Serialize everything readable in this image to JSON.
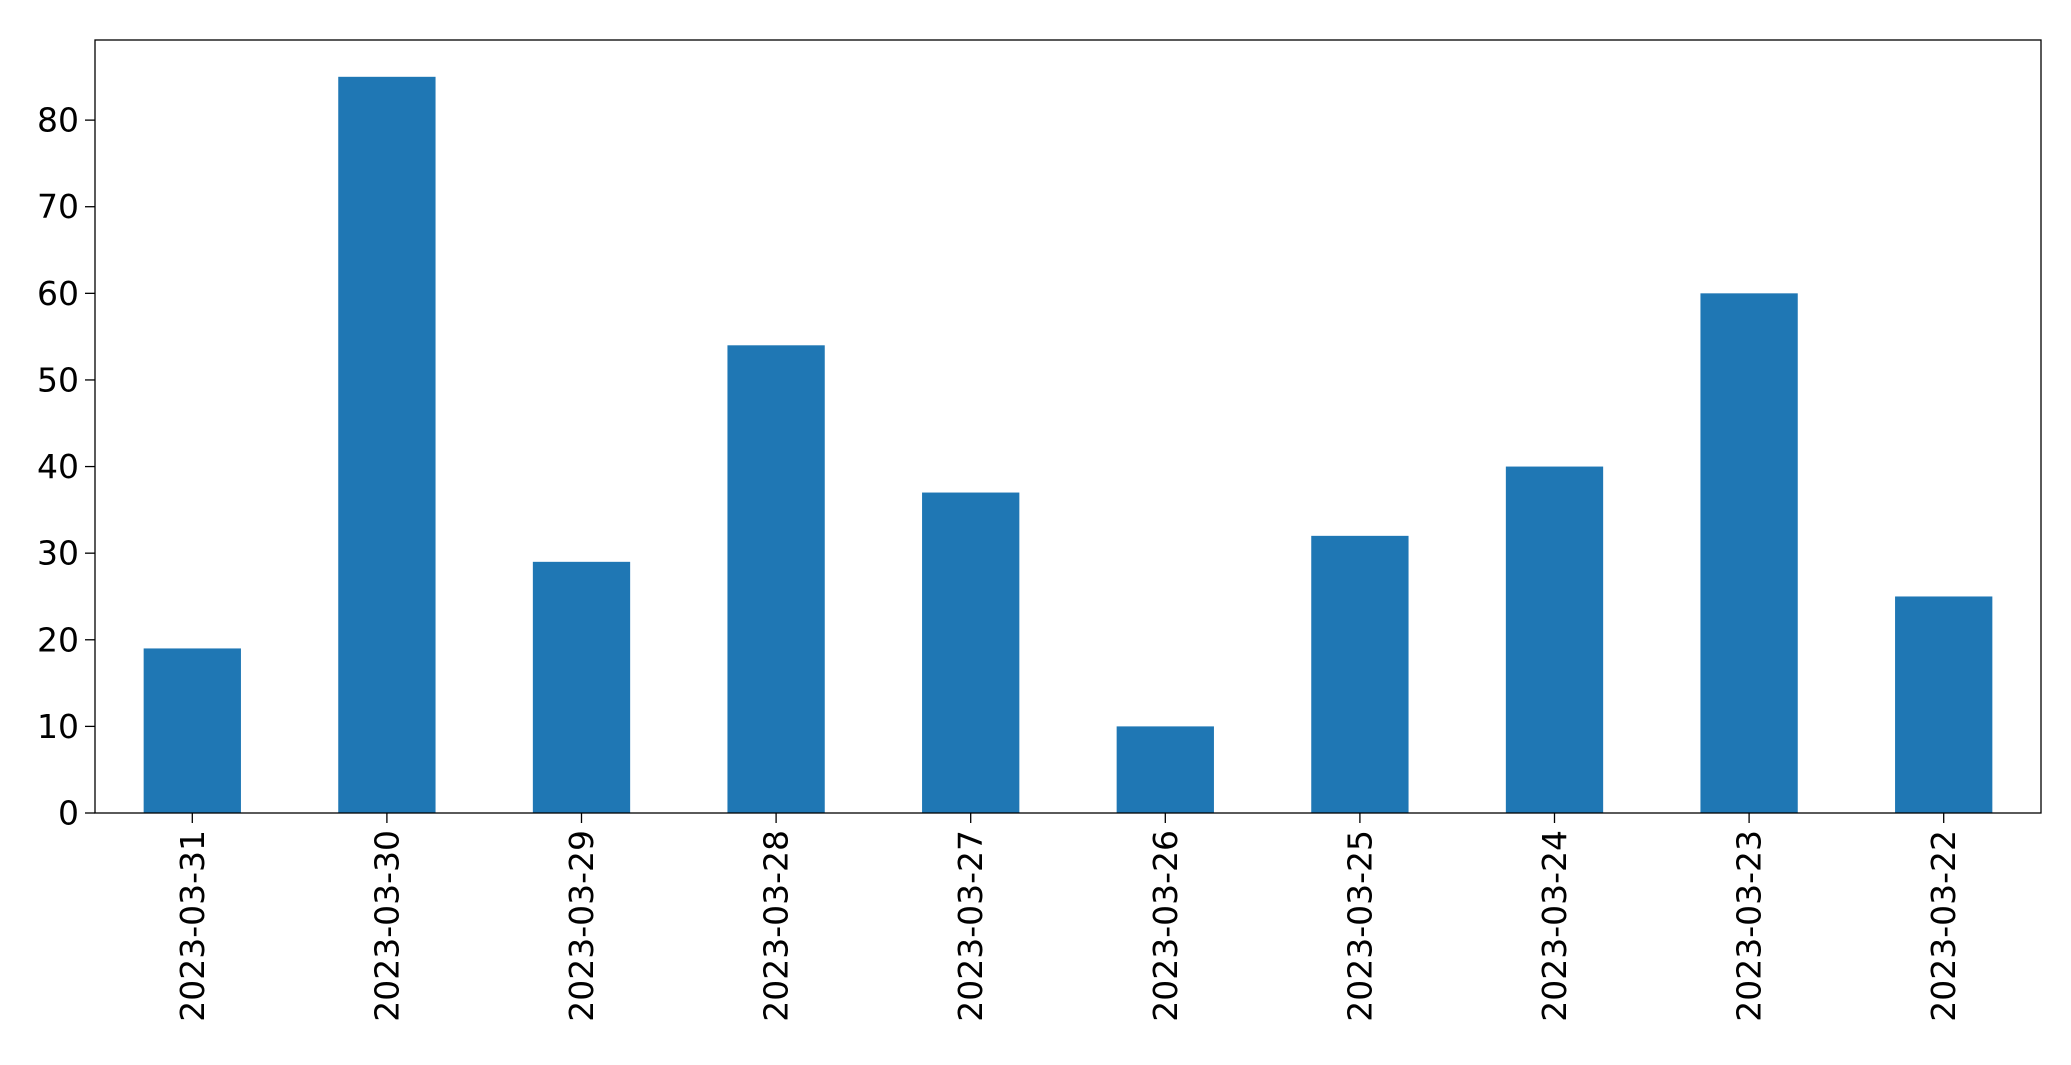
{
  "chart_data": {
    "type": "bar",
    "categories": [
      "2023-03-31",
      "2023-03-30",
      "2023-03-29",
      "2023-03-28",
      "2023-03-27",
      "2023-03-26",
      "2023-03-25",
      "2023-03-24",
      "2023-03-23",
      "2023-03-22"
    ],
    "values": [
      19,
      85,
      29,
      54,
      37,
      10,
      32,
      40,
      60,
      25
    ],
    "yticks": [
      0,
      10,
      20,
      30,
      40,
      50,
      60,
      70,
      80
    ],
    "ylim": [
      0,
      89.25
    ],
    "title": "",
    "xlabel": "",
    "ylabel": "",
    "grid": false,
    "legend": "none",
    "bar_color": "#1f77b4"
  }
}
